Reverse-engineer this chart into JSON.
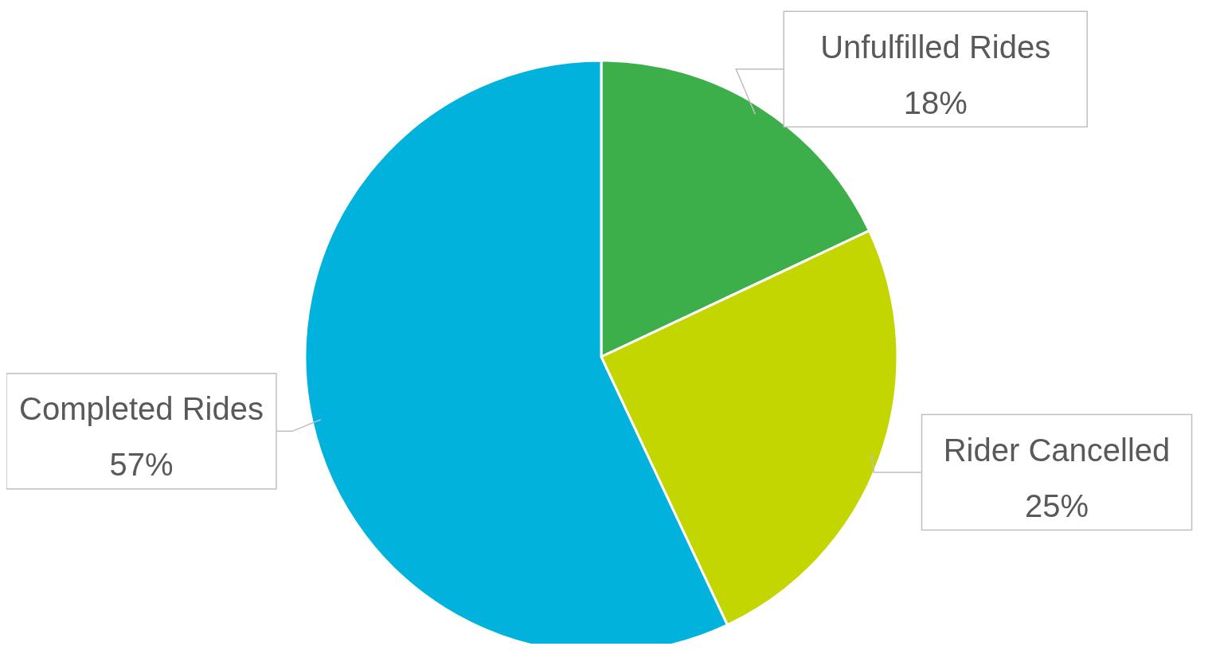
{
  "chart_data": {
    "type": "pie",
    "categories": [
      "Unfulfilled Rides",
      "Rider Cancelled",
      "Completed Rides"
    ],
    "values": [
      18,
      25,
      57
    ],
    "colors": [
      "#3cae4a",
      "#c3d600",
      "#00b2dc"
    ],
    "value_labels": [
      "18%",
      "25%",
      "57%"
    ]
  }
}
